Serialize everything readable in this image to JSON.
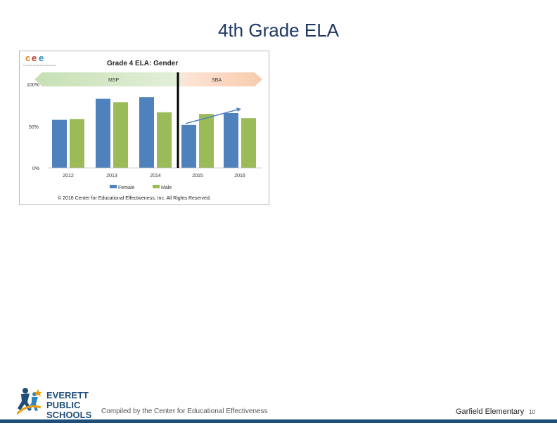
{
  "slide": {
    "title": "4th Grade ELA",
    "footer_compiled": "Compiled by the Center for Educational Effectiveness",
    "footer_school": "Garfield Elementary",
    "page_number": "10"
  },
  "logo": {
    "line1": "EVERETT",
    "line2": "PUBLIC",
    "line3": "SCHOOLS",
    "color_primary": "#1f4e79",
    "color_accent": "#f39c12",
    "color_secondary": "#2e86c1"
  },
  "cee_logo": {
    "c1": "c",
    "e1": "e",
    "e2": "e",
    "subtitle": "The Center for Educational Effectiveness"
  },
  "chart_data": {
    "type": "bar",
    "title": "Grade 4 ELA: Gender",
    "categories": [
      "2012",
      "2013",
      "2014",
      "2015",
      "2016"
    ],
    "series": [
      {
        "name": "Female",
        "color": "#4f81bd",
        "values": [
          57,
          82,
          84,
          51,
          65
        ]
      },
      {
        "name": "Male",
        "color": "#9bbb59",
        "values": [
          58,
          78,
          66,
          64,
          59
        ]
      }
    ],
    "y_ticks": [
      {
        "value": 0,
        "label": "0%"
      },
      {
        "value": 50,
        "label": "50%"
      },
      {
        "value": 100,
        "label": "100%"
      }
    ],
    "ylim": [
      0,
      100
    ],
    "test_ranges": [
      {
        "label": "MSP",
        "color": "#c6e0b4"
      },
      {
        "label": "SBA",
        "color": "#f8cbad"
      }
    ],
    "trend": {
      "from_value": 51,
      "to_value": 70
    },
    "legend_position": "bottom",
    "copyright": "© 2016 Center for Educational Effectiveness, Inc. All Rights Reserved."
  }
}
